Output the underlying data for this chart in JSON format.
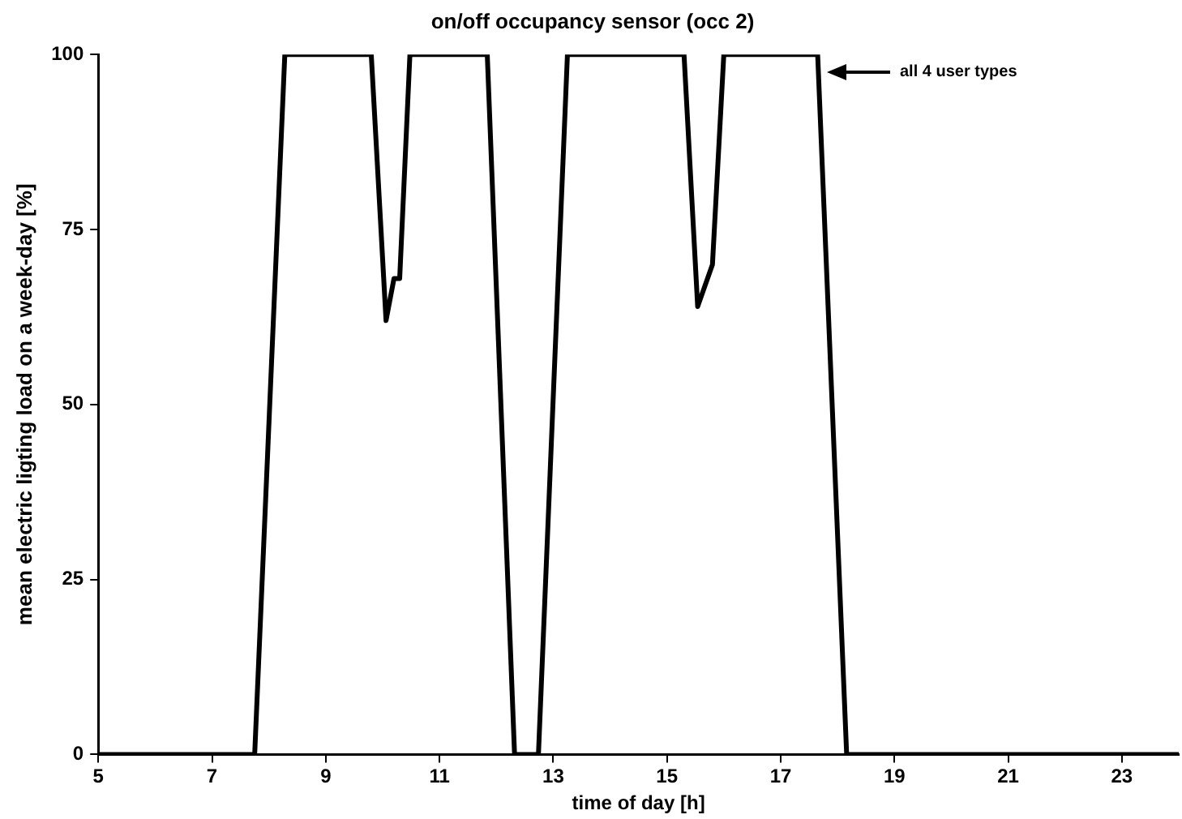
{
  "chart_data": {
    "type": "line",
    "title": "on/off occupancy sensor (occ 2)",
    "xlabel": "time of day [h]",
    "ylabel": "mean electric ligting load on a week-day [%]",
    "x": [
      5,
      7.75,
      8.28,
      9.8,
      10.06,
      10.2,
      10.3,
      10.48,
      11.84,
      12.32,
      12.74,
      13.25,
      15.3,
      15.54,
      15.8,
      16.0,
      17.65,
      18.16,
      24
    ],
    "series": [
      {
        "color": "#000000",
        "values": [
          0,
          0,
          100,
          100,
          62,
          68,
          68,
          100,
          100,
          0,
          0,
          100,
          100,
          64,
          70,
          100,
          100,
          0,
          0
        ]
      }
    ],
    "xlim": [
      5,
      24
    ],
    "xticks": [
      5,
      7,
      9,
      11,
      13,
      15,
      17,
      19,
      21,
      23
    ],
    "ylim": [
      0,
      100
    ],
    "yticks": [
      0,
      25,
      50,
      75,
      100
    ],
    "grid": false,
    "legend": false,
    "marker": "none",
    "line_style": "solid",
    "annotations": [
      "all 4 user types"
    ]
  }
}
